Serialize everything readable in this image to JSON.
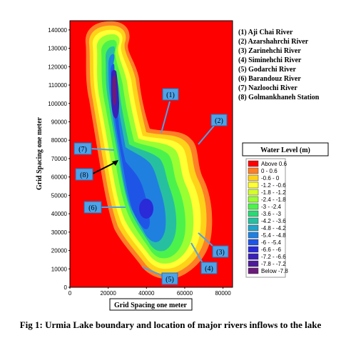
{
  "map": {
    "y_axis_label": "Grid Spacing one meter",
    "x_axis_label": "Grid Spacing one meter",
    "y_ticks": [
      "0",
      "10000",
      "20000",
      "30000",
      "40000",
      "50000",
      "60000",
      "70000",
      "80000",
      "90000",
      "100000",
      "110000",
      "120000",
      "130000",
      "140000"
    ],
    "x_ticks": [
      "0",
      "20000",
      "40000",
      "60000",
      "80000"
    ],
    "x_range": [
      0,
      85000
    ],
    "y_range": [
      0,
      145000
    ],
    "background_color": "#ff0000"
  },
  "rivers": [
    "(1) Aji Chai River",
    "(2) Azarshahrchi River",
    "(3) Zarinehchi River",
    "(4) Siminehchi River",
    "(5) Godarchi  River",
    "(6) Barandouz River",
    "(7) Nazloochi River",
    "(8) Golmankhaneh Station"
  ],
  "callouts": [
    "(1)",
    "(2)",
    "(3)",
    "(4)",
    "(5)",
    "(6)",
    "(7)",
    "(8)"
  ],
  "legend": {
    "title": "Water Level (m)",
    "items": [
      {
        "label": "Above  0.6",
        "color": "#ff0000"
      },
      {
        "label": "0 -  0.6",
        "color": "#ff7f27"
      },
      {
        "label": "-0.6 -   0",
        "color": "#ffd21a"
      },
      {
        "label": "-1.2 - -0.6",
        "color": "#ffff33"
      },
      {
        "label": "-1.8 - -1.2",
        "color": "#d4ff2a"
      },
      {
        "label": "-2.4 - -1.8",
        "color": "#99ff33"
      },
      {
        "label": "-3 - -2.4",
        "color": "#4cf24c"
      },
      {
        "label": "-3.6 -   -3",
        "color": "#29d975"
      },
      {
        "label": "-4.2 - -3.6",
        "color": "#26c0a0"
      },
      {
        "label": "-4.8 - -4.2",
        "color": "#22a3c8"
      },
      {
        "label": "-5.4 - -4.8",
        "color": "#1f80e0"
      },
      {
        "label": "-6 - -5.4",
        "color": "#1f55e6"
      },
      {
        "label": "-6.6 -   -6",
        "color": "#2a2ad9"
      },
      {
        "label": "-7.2 - -6.6",
        "color": "#3a1fb8"
      },
      {
        "label": "-7.8 - -7.2",
        "color": "#4d1a99"
      },
      {
        "label": "Below -7.8",
        "color": "#6a1a7a"
      }
    ]
  },
  "caption": "Fig 1: Urmia Lake boundary and location of major rivers inflows to the lake"
}
